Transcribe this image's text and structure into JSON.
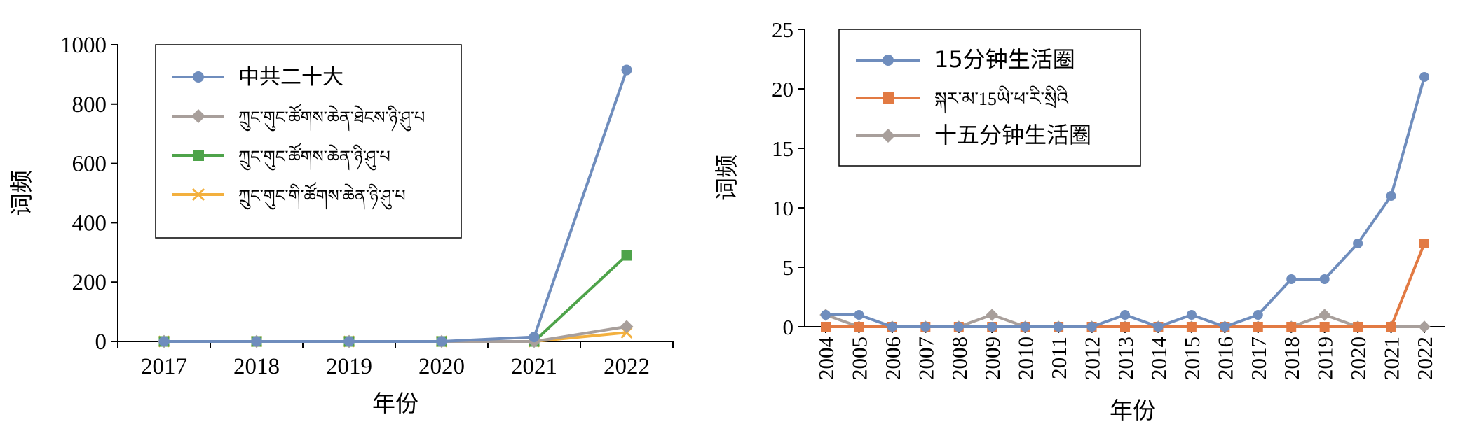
{
  "chart_data": [
    {
      "type": "line",
      "xlabel": "年份",
      "ylabel": "词频",
      "categories": [
        "2017",
        "2018",
        "2019",
        "2020",
        "2021",
        "2022"
      ],
      "yticks": [
        "0",
        "200",
        "400",
        "600",
        "800",
        "1000"
      ],
      "ylim": [
        0,
        1000
      ],
      "legend_position": "top-left",
      "series": [
        {
          "name": "中共二十大",
          "color": "#6f8dbd",
          "marker": "circle",
          "values": [
            0,
            0,
            0,
            0,
            15,
            915
          ]
        },
        {
          "name": "ཀྲུང་གུང་ཚོགས་ཆེན་ཐེངས་ཉི་ཤུ་པ",
          "color": "#a89f9b",
          "marker": "diamond",
          "values": [
            0,
            0,
            0,
            0,
            0,
            50
          ]
        },
        {
          "name": "ཀྲུང་གུང་ཚོགས་ཆེན་ཉི་ཤུ་པ",
          "color": "#4ea34a",
          "marker": "square",
          "values": [
            0,
            0,
            0,
            0,
            0,
            290
          ]
        },
        {
          "name": "ཀྲུང་གུང་གི་ཚོགས་ཆེན་ཉི་ཤུ་པ",
          "color": "#f3b03e",
          "marker": "x",
          "values": [
            0,
            0,
            0,
            0,
            0,
            30
          ]
        }
      ]
    },
    {
      "type": "line",
      "xlabel": "年份",
      "ylabel": "词频",
      "categories": [
        "2004",
        "2005",
        "2006",
        "2007",
        "2008",
        "2009",
        "2010",
        "2011",
        "2012",
        "2013",
        "2014",
        "2015",
        "2016",
        "2017",
        "2018",
        "2019",
        "2020",
        "2021",
        "2022"
      ],
      "yticks": [
        "0",
        "5",
        "10",
        "15",
        "20",
        "25"
      ],
      "ylim": [
        0,
        25
      ],
      "legend_position": "top-left",
      "series": [
        {
          "name": "15分钟生活圈",
          "color": "#6f8dbd",
          "marker": "circle",
          "values": [
            1,
            1,
            0,
            0,
            0,
            0,
            0,
            0,
            0,
            1,
            0,
            1,
            0,
            1,
            4,
            4,
            7,
            11,
            21
          ]
        },
        {
          "name": "སྐར་མ་15ཡི་ཕ་རི་སྲིའི",
          "color": "#e27a43",
          "marker": "square",
          "values": [
            0,
            0,
            0,
            0,
            0,
            0,
            0,
            0,
            0,
            0,
            0,
            0,
            0,
            0,
            0,
            0,
            0,
            0,
            7
          ]
        },
        {
          "name": "十五分钟生活圈",
          "color": "#a89f9b",
          "marker": "diamond",
          "values": [
            1,
            0,
            0,
            0,
            0,
            1,
            0,
            0,
            0,
            0,
            0,
            0,
            0,
            0,
            0,
            1,
            0,
            0,
            0
          ]
        }
      ]
    }
  ]
}
